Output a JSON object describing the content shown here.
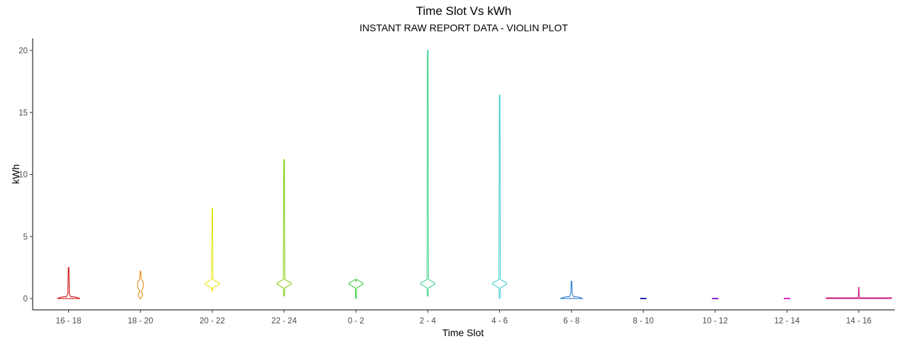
{
  "chart_data": {
    "type": "violin",
    "title": "Time Slot Vs kWh",
    "subtitle": "INSTANT RAW REPORT DATA - VIOLIN PLOT",
    "xlabel": "Time Slot",
    "ylabel": "kWh",
    "ylim": [
      -0.8,
      20.8
    ],
    "yticks": [
      0,
      5,
      10,
      15,
      20
    ],
    "grid": false,
    "legend": "none",
    "categories": [
      "16 - 18",
      "18 - 20",
      "20 - 22",
      "22 - 24",
      "0 - 2",
      "2 - 4",
      "4 - 6",
      "6 - 8",
      "8 - 10",
      "10 - 12",
      "12 - 14",
      "14 - 16"
    ],
    "series": [
      {
        "category": "16 - 18",
        "color": "#cc0000",
        "min": 0.0,
        "max": 2.5,
        "mode": 0.05
      },
      {
        "category": "18 - 20",
        "color": "#e08000",
        "min": 0.0,
        "max": 2.2,
        "mode": 1.1
      },
      {
        "category": "20 - 22",
        "color": "#e6e600",
        "min": 0.6,
        "max": 7.3,
        "mode": 1.2
      },
      {
        "category": "22 - 24",
        "color": "#80cc00",
        "min": 0.2,
        "max": 11.2,
        "mode": 1.2
      },
      {
        "category": "0 - 2",
        "color": "#33cc33",
        "min": 0.0,
        "max": 1.4,
        "mode": 1.2
      },
      {
        "category": "2 - 4",
        "color": "#33cc88",
        "min": 0.2,
        "max": 20.0,
        "mode": 1.2
      },
      {
        "category": "4 - 6",
        "color": "#33cccc",
        "min": 0.0,
        "max": 16.4,
        "mode": 1.2
      },
      {
        "category": "6 - 8",
        "color": "#1a6fcc",
        "min": 0.0,
        "max": 1.4,
        "mode": 0.05
      },
      {
        "category": "8 - 10",
        "color": "#2222aa",
        "min": 0.0,
        "max": 0.05,
        "mode": 0.0
      },
      {
        "category": "10 - 12",
        "color": "#8822cc",
        "min": 0.0,
        "max": 0.05,
        "mode": 0.0
      },
      {
        "category": "12 - 14",
        "color": "#cc22cc",
        "min": 0.0,
        "max": 0.05,
        "mode": 0.0
      },
      {
        "category": "14 - 16",
        "color": "#cc1177",
        "min": 0.0,
        "max": 0.9,
        "mode": 0.0
      }
    ]
  }
}
